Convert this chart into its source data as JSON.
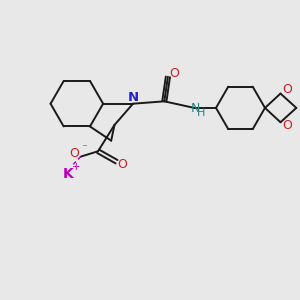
{
  "bg_color": "#e8e8e8",
  "bond_color": "#1a1a1a",
  "N_color": "#2222cc",
  "O_color": "#cc2222",
  "K_color": "#bb00bb",
  "NH_color": "#228888",
  "bond_width": 1.4,
  "figsize": [
    3.0,
    3.0
  ],
  "dpi": 100,
  "xlim": [
    0,
    10
  ],
  "ylim": [
    0,
    10
  ]
}
